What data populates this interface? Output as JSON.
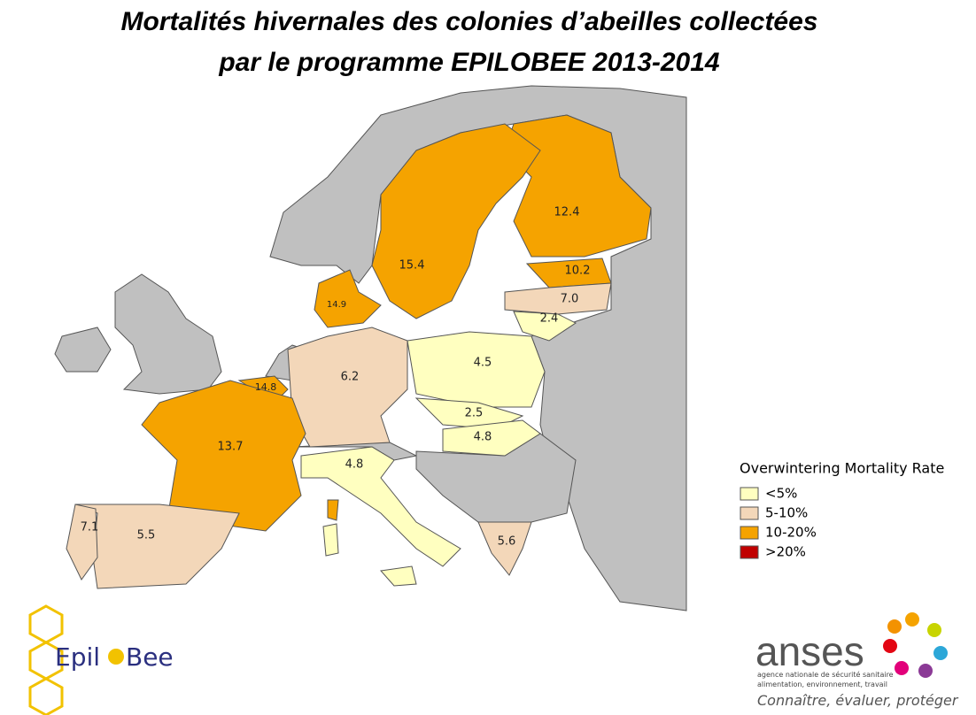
{
  "title": [
    "Mortalités hivernales des colonies d’abeilles collectées",
    "par le programme EPILOBEE 2013-2014"
  ],
  "map": {
    "regions": [
      {
        "label": "12.4",
        "color": "#f5a300"
      },
      {
        "label": "15.4",
        "color": "#f5a300"
      },
      {
        "label": "10.2",
        "color": "#f5a300"
      },
      {
        "label": "7.0",
        "color": "#f3d7b9"
      },
      {
        "label": "2.4",
        "color": "#ffffc0"
      },
      {
        "label": "14.9",
        "color": "#f5a300"
      },
      {
        "label": "6.2",
        "color": "#f3d7b9"
      },
      {
        "label": "4.5",
        "color": "#ffffc0"
      },
      {
        "label": "14.8",
        "color": "#f5a300"
      },
      {
        "label": "13.7",
        "color": "#f5a300"
      },
      {
        "label": "2.5",
        "color": "#ffffc0"
      },
      {
        "label": "4.8",
        "color": "#ffffc0"
      },
      {
        "label": "4.8",
        "color": "#ffffc0"
      },
      {
        "label": "5.5",
        "color": "#f3d7b9"
      },
      {
        "label": "7.1",
        "color": "#f3d7b9"
      },
      {
        "label": "5.6",
        "color": "#f3d7b9"
      }
    ]
  },
  "legend": {
    "title": "Overwintering Mortality Rate",
    "items": [
      {
        "label": "<5%",
        "color": "#ffffc0"
      },
      {
        "label": "5-10%",
        "color": "#f3d7b9"
      },
      {
        "label": "10-20%",
        "color": "#f5a300"
      },
      {
        "label": ">20%",
        "color": "#c00000"
      }
    ]
  },
  "logos": {
    "epilobee": [
      "Epil",
      "Bee"
    ],
    "anses": {
      "name": "anses",
      "line1": "agence nationale de sécurité sanitaire",
      "line2": "alimentation, environnement, travail",
      "motto": "Connaître, évaluer, protéger"
    }
  }
}
